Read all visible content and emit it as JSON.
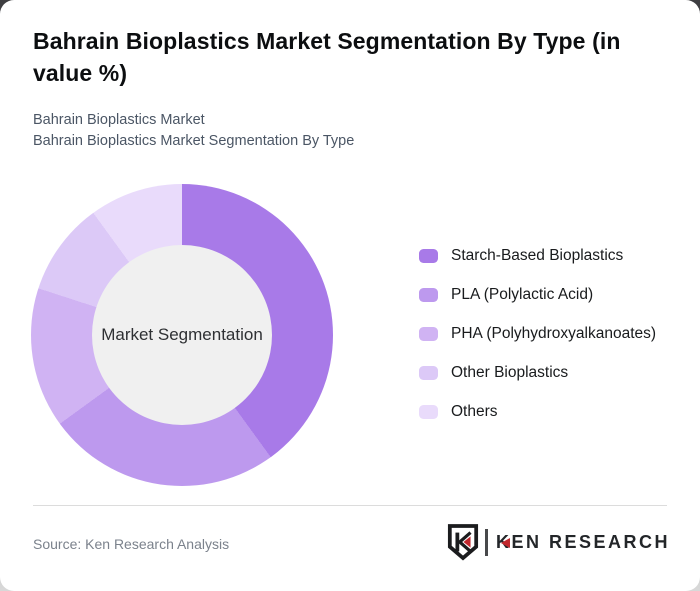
{
  "page": {
    "title": "Bahrain Bioplastics Market Segmentation By Type (in value %)",
    "subtitle_line1": "Bahrain Bioplastics Market",
    "subtitle_line2": "Bahrain Bioplastics Market Segmentation By Type"
  },
  "chart_data": {
    "type": "pie",
    "subtype": "donut",
    "title": "Bahrain Bioplastics Market Segmentation By Type (in value %)",
    "center_label": "Market Segmentation",
    "categories": [
      "Starch-Based Bioplastics",
      "PLA (Polylactic Acid)",
      "PHA (Polyhydroxyalkanoates)",
      "Other Bioplastics",
      "Others"
    ],
    "values": [
      40,
      25,
      15,
      10,
      10
    ],
    "unit": "value %",
    "colors": [
      "#a87ae8",
      "#bd99ee",
      "#d0b3f3",
      "#dcc9f7",
      "#e9dbfb"
    ],
    "start_angle_deg": 0,
    "direction": "clockwise",
    "legend_position": "right",
    "inner_circle_color": "#f0f0f0"
  },
  "footer": {
    "source": "Source: Ken Research Analysis",
    "logo": {
      "brand": "Ken Research",
      "wordmark_first_letter": "K",
      "wordmark_rest": "EN RESEARCH",
      "accent_color": "#c1272d"
    }
  }
}
